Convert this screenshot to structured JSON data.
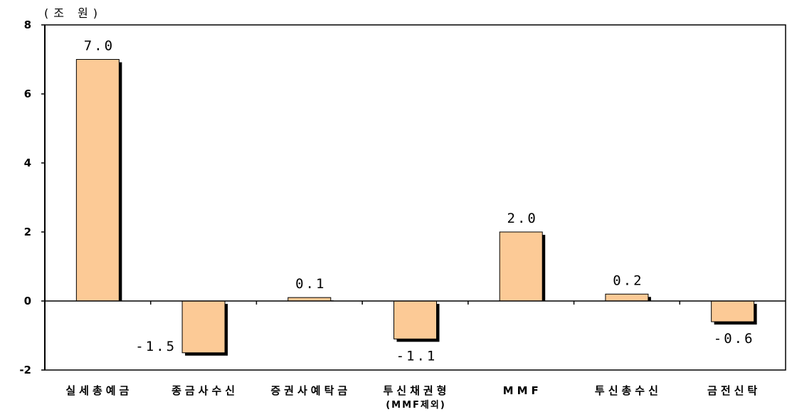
{
  "chart_data": {
    "type": "bar",
    "ylabel": "(조 원)",
    "categories": [
      "실세총예금",
      "종금사수신",
      "증권사예탁금",
      "투신채권형",
      "MMF",
      "투신총수신",
      "금전신탁"
    ],
    "category_notes": [
      null,
      null,
      null,
      "(MMF제외)",
      null,
      null,
      null
    ],
    "values": [
      7.0,
      -1.5,
      0.1,
      -1.1,
      2.0,
      0.2,
      -0.6
    ],
    "data_labels": [
      "7.0",
      "-1.5",
      "0.1",
      "-1.1",
      "2.0",
      "0.2",
      "-0.6"
    ],
    "ylim": [
      -2,
      8
    ],
    "yticks": [
      8,
      6,
      4,
      2,
      0,
      -2
    ],
    "grid": false,
    "legend": "none",
    "colors": {
      "bar_fill": "#FCCA96",
      "bar_edge": "#000000",
      "bar_shadow": "#000000",
      "axis": "#000000"
    }
  }
}
